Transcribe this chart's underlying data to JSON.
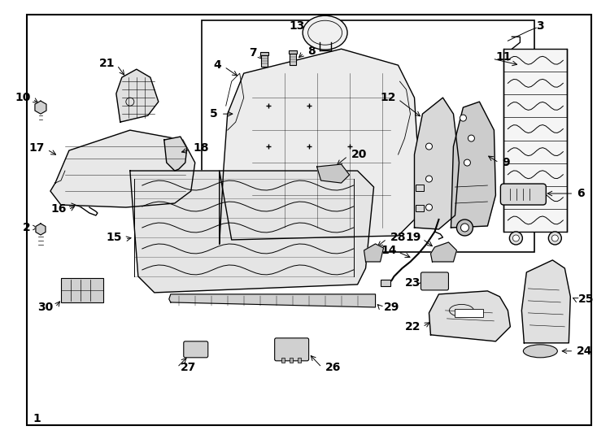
{
  "bg_color": "#ffffff",
  "border_color": "#000000",
  "label_color": "#000000",
  "figsize": [
    7.34,
    5.4
  ],
  "dpi": 100,
  "lw_main": 1.0,
  "lw_thin": 0.6,
  "fs_label": 10
}
